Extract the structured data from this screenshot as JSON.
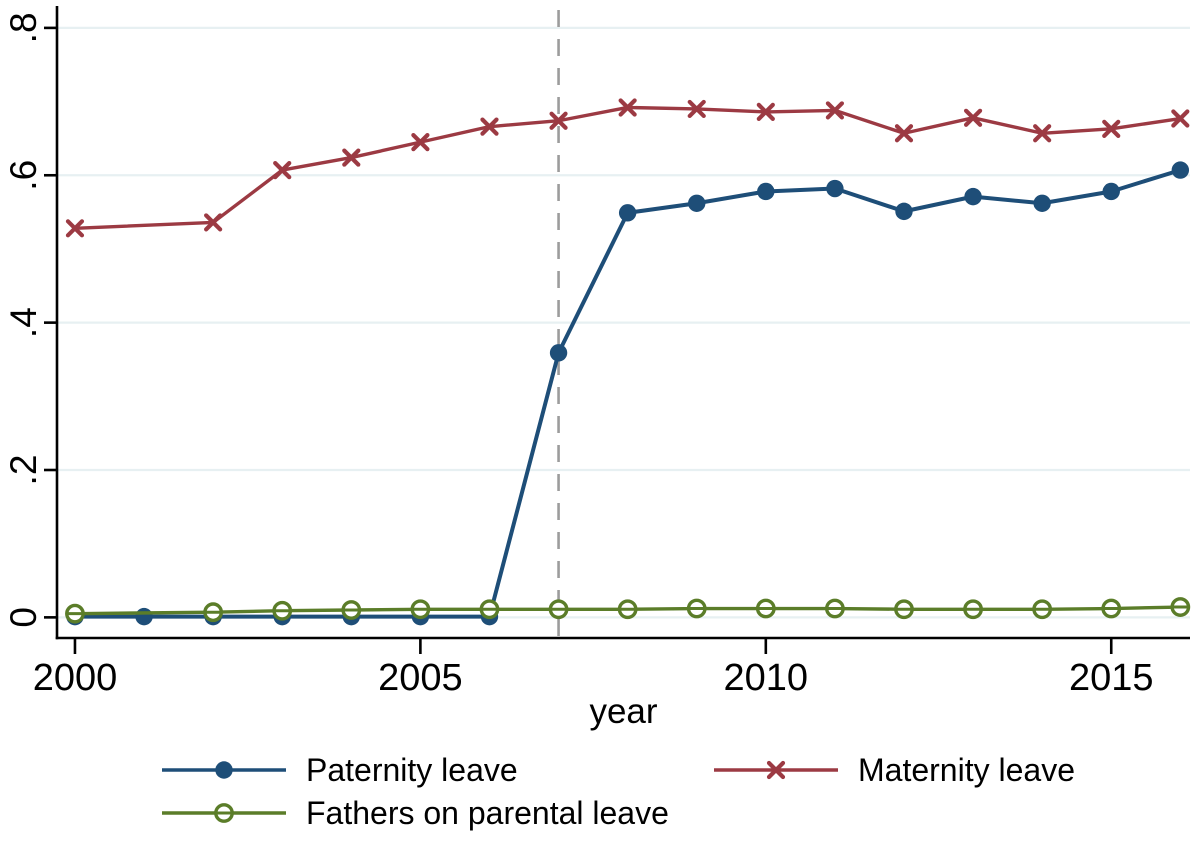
{
  "chart_data": {
    "type": "line",
    "title": "",
    "xlabel": "year",
    "ylabel": "",
    "xlim": [
      1999.74,
      2016.14
    ],
    "ylim": [
      -0.028,
      0.827
    ],
    "x_ticks": [
      2000,
      2005,
      2010,
      2015
    ],
    "x_tick_labels": [
      "2000",
      "2005",
      "2010",
      "2015"
    ],
    "y_ticks": [
      0,
      0.2,
      0.4,
      0.6,
      0.8
    ],
    "y_tick_labels": [
      "0",
      ".2",
      ".4",
      ".6",
      ".8"
    ],
    "grid": "horizontal light gridlines at each y tick",
    "legend_position": "bottom, two columns, no border",
    "reference_line": {
      "orientation": "vertical",
      "x": 2007,
      "style": "dashed",
      "color": "#9c9c9c"
    },
    "colors": {
      "grid": "#e7f0f2",
      "axis": "#000000",
      "background": "#ffffff"
    },
    "series": [
      {
        "name": "Paternity leave",
        "color": "#1e4e78",
        "marker": "filled-circle",
        "x": [
          2000,
          2001,
          2002,
          2003,
          2004,
          2005,
          2006,
          2007,
          2008,
          2009,
          2010,
          2011,
          2012,
          2013,
          2014,
          2015,
          2016
        ],
        "values": [
          0.001,
          0.001,
          0.001,
          0.001,
          0.001,
          0.001,
          0.001,
          0.359,
          0.549,
          0.562,
          0.578,
          0.582,
          0.551,
          0.571,
          0.562,
          0.578,
          0.607
        ]
      },
      {
        "name": "Maternity leave",
        "color": "#9c3a43",
        "marker": "x",
        "x": [
          2000,
          2002,
          2003,
          2004,
          2005,
          2006,
          2007,
          2008,
          2009,
          2010,
          2011,
          2012,
          2013,
          2014,
          2015,
          2016
        ],
        "values": [
          0.528,
          0.536,
          0.607,
          0.624,
          0.645,
          0.666,
          0.674,
          0.692,
          0.69,
          0.686,
          0.688,
          0.657,
          0.678,
          0.657,
          0.663,
          0.677
        ]
      },
      {
        "name": "Fathers on parental leave",
        "color": "#5b7d29",
        "marker": "open-circle",
        "x": [
          2000,
          2002,
          2003,
          2004,
          2005,
          2006,
          2007,
          2008,
          2009,
          2010,
          2011,
          2012,
          2013,
          2014,
          2015,
          2016
        ],
        "values": [
          0.005,
          0.007,
          0.009,
          0.01,
          0.011,
          0.011,
          0.011,
          0.011,
          0.012,
          0.012,
          0.012,
          0.011,
          0.011,
          0.011,
          0.012,
          0.014
        ]
      }
    ]
  }
}
